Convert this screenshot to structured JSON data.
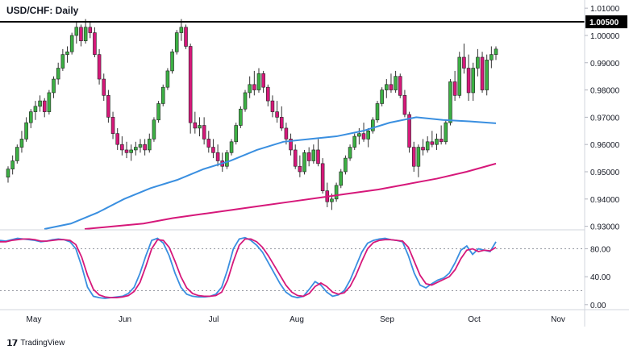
{
  "chart_data": {
    "type": "candlestick",
    "title": "USD/CHF: Daily",
    "brand": "TradingView",
    "x_labels": [
      "May",
      "Jun",
      "Jul",
      "Aug",
      "Sep",
      "Oct",
      "Nov"
    ],
    "price_axis": {
      "ylim": [
        0.929,
        1.013
      ],
      "ticks": [
        "1.01000",
        "1.00000",
        "0.99000",
        "0.98000",
        "0.97000",
        "0.96000",
        "0.95000",
        "0.94000",
        "0.93000"
      ],
      "tick_values": [
        1.01,
        1.0,
        0.99,
        0.98,
        0.97,
        0.96,
        0.95,
        0.94,
        0.93
      ]
    },
    "resistance": {
      "value": 1.005,
      "label": "1.00500",
      "color": "#000000"
    },
    "colors": {
      "up": "#3cb044",
      "down": "#d6187a",
      "sma_fast": "#3a8fe0",
      "sma_slow": "#d6187a",
      "stoch_k": "#3a8fe0",
      "stoch_d": "#d6187a"
    },
    "candles": [
      [
        0.948,
        0.952,
        0.946,
        0.951
      ],
      [
        0.951,
        0.956,
        0.949,
        0.954
      ],
      [
        0.954,
        0.96,
        0.953,
        0.959
      ],
      [
        0.959,
        0.965,
        0.957,
        0.962
      ],
      [
        0.962,
        0.97,
        0.961,
        0.968
      ],
      [
        0.968,
        0.973,
        0.966,
        0.972
      ],
      [
        0.972,
        0.976,
        0.969,
        0.974
      ],
      [
        0.974,
        0.978,
        0.972,
        0.976
      ],
      [
        0.976,
        0.977,
        0.97,
        0.972
      ],
      [
        0.972,
        0.98,
        0.971,
        0.979
      ],
      [
        0.979,
        0.985,
        0.977,
        0.984
      ],
      [
        0.984,
        0.99,
        0.982,
        0.988
      ],
      [
        0.988,
        0.995,
        0.987,
        0.993
      ],
      [
        0.993,
        0.996,
        0.99,
        0.994
      ],
      [
        0.994,
        1.001,
        0.993,
        1.0
      ],
      [
        1.0,
        1.005,
        0.997,
        1.003
      ],
      [
        1.003,
        1.004,
        0.996,
        0.998
      ],
      [
        0.998,
        1.006,
        0.997,
        1.003
      ],
      [
        1.003,
        1.005,
        0.999,
        1.001
      ],
      [
        1.001,
        1.003,
        0.992,
        0.993
      ],
      [
        0.993,
        0.995,
        0.982,
        0.984
      ],
      [
        0.984,
        0.986,
        0.976,
        0.978
      ],
      [
        0.978,
        0.98,
        0.968,
        0.97
      ],
      [
        0.97,
        0.972,
        0.962,
        0.964
      ],
      [
        0.964,
        0.966,
        0.958,
        0.96
      ],
      [
        0.96,
        0.963,
        0.956,
        0.958
      ],
      [
        0.958,
        0.961,
        0.955,
        0.957
      ],
      [
        0.957,
        0.96,
        0.954,
        0.958
      ],
      [
        0.958,
        0.961,
        0.956,
        0.959
      ],
      [
        0.959,
        0.962,
        0.957,
        0.96
      ],
      [
        0.96,
        0.962,
        0.956,
        0.958
      ],
      [
        0.958,
        0.964,
        0.957,
        0.962
      ],
      [
        0.962,
        0.97,
        0.961,
        0.969
      ],
      [
        0.969,
        0.976,
        0.968,
        0.975
      ],
      [
        0.975,
        0.982,
        0.974,
        0.981
      ],
      [
        0.981,
        0.988,
        0.98,
        0.987
      ],
      [
        0.987,
        0.995,
        0.986,
        0.994
      ],
      [
        0.994,
        1.002,
        0.993,
        1.001
      ],
      [
        1.001,
        1.006,
        0.998,
        1.003
      ],
      [
        1.003,
        1.004,
        0.995,
        0.996
      ],
      [
        0.996,
        0.997,
        0.964,
        0.968
      ],
      [
        0.968,
        0.972,
        0.964,
        0.966
      ],
      [
        0.966,
        0.97,
        0.963,
        0.967
      ],
      [
        0.967,
        0.97,
        0.96,
        0.962
      ],
      [
        0.962,
        0.965,
        0.957,
        0.959
      ],
      [
        0.959,
        0.962,
        0.955,
        0.957
      ],
      [
        0.957,
        0.96,
        0.952,
        0.954
      ],
      [
        0.954,
        0.957,
        0.95,
        0.952
      ],
      [
        0.952,
        0.958,
        0.951,
        0.957
      ],
      [
        0.957,
        0.962,
        0.956,
        0.961
      ],
      [
        0.961,
        0.968,
        0.96,
        0.967
      ],
      [
        0.967,
        0.974,
        0.966,
        0.973
      ],
      [
        0.973,
        0.98,
        0.972,
        0.979
      ],
      [
        0.979,
        0.985,
        0.977,
        0.982
      ],
      [
        0.982,
        0.987,
        0.978,
        0.98
      ],
      [
        0.98,
        0.988,
        0.979,
        0.986
      ],
      [
        0.986,
        0.987,
        0.979,
        0.981
      ],
      [
        0.981,
        0.982,
        0.974,
        0.976
      ],
      [
        0.976,
        0.978,
        0.97,
        0.972
      ],
      [
        0.972,
        0.976,
        0.968,
        0.97
      ],
      [
        0.97,
        0.974,
        0.965,
        0.966
      ],
      [
        0.966,
        0.968,
        0.96,
        0.962
      ],
      [
        0.962,
        0.964,
        0.956,
        0.958
      ],
      [
        0.958,
        0.96,
        0.951,
        0.952
      ],
      [
        0.952,
        0.956,
        0.948,
        0.95
      ],
      [
        0.95,
        0.958,
        0.949,
        0.957
      ],
      [
        0.957,
        0.959,
        0.952,
        0.954
      ],
      [
        0.954,
        0.96,
        0.953,
        0.958
      ],
      [
        0.958,
        0.962,
        0.952,
        0.953
      ],
      [
        0.953,
        0.955,
        0.942,
        0.943
      ],
      [
        0.943,
        0.946,
        0.937,
        0.939
      ],
      [
        0.939,
        0.942,
        0.936,
        0.94
      ],
      [
        0.94,
        0.946,
        0.939,
        0.945
      ],
      [
        0.945,
        0.951,
        0.944,
        0.95
      ],
      [
        0.95,
        0.956,
        0.949,
        0.955
      ],
      [
        0.955,
        0.96,
        0.954,
        0.959
      ],
      [
        0.959,
        0.964,
        0.958,
        0.963
      ],
      [
        0.963,
        0.966,
        0.96,
        0.964
      ],
      [
        0.964,
        0.968,
        0.961,
        0.962
      ],
      [
        0.962,
        0.966,
        0.959,
        0.965
      ],
      [
        0.965,
        0.97,
        0.964,
        0.969
      ],
      [
        0.969,
        0.976,
        0.968,
        0.975
      ],
      [
        0.975,
        0.981,
        0.974,
        0.98
      ],
      [
        0.98,
        0.984,
        0.977,
        0.982
      ],
      [
        0.982,
        0.986,
        0.979,
        0.98
      ],
      [
        0.98,
        0.987,
        0.979,
        0.985
      ],
      [
        0.985,
        0.986,
        0.977,
        0.978
      ],
      [
        0.978,
        0.98,
        0.97,
        0.971
      ],
      [
        0.971,
        0.972,
        0.957,
        0.959
      ],
      [
        0.959,
        0.961,
        0.95,
        0.952
      ],
      [
        0.952,
        0.96,
        0.948,
        0.959
      ],
      [
        0.959,
        0.962,
        0.956,
        0.958
      ],
      [
        0.958,
        0.963,
        0.957,
        0.961
      ],
      [
        0.961,
        0.965,
        0.959,
        0.96
      ],
      [
        0.96,
        0.964,
        0.958,
        0.962
      ],
      [
        0.962,
        0.967,
        0.96,
        0.961
      ],
      [
        0.961,
        0.969,
        0.96,
        0.968
      ],
      [
        0.968,
        0.984,
        0.967,
        0.983
      ],
      [
        0.983,
        0.987,
        0.976,
        0.978
      ],
      [
        0.978,
        0.994,
        0.977,
        0.992
      ],
      [
        0.992,
        0.997,
        0.986,
        0.988
      ],
      [
        0.988,
        0.993,
        0.976,
        0.979
      ],
      [
        0.979,
        0.99,
        0.976,
        0.988
      ],
      [
        0.988,
        0.995,
        0.985,
        0.992
      ],
      [
        0.992,
        0.994,
        0.979,
        0.98
      ],
      [
        0.98,
        0.993,
        0.978,
        0.991
      ],
      [
        0.991,
        0.996,
        0.988,
        0.993
      ],
      [
        0.993,
        0.996,
        0.991,
        0.995
      ]
    ],
    "sma_fast": {
      "start": [
        55,
        284
      ],
      "points": [
        0.929,
        0.931,
        0.935,
        0.94,
        0.944,
        0.947,
        0.951,
        0.954,
        0.958,
        0.961,
        0.962,
        0.963,
        0.965,
        0.968,
        0.97,
        0.969,
        0.9685,
        0.9678
      ]
    },
    "sma_slow": {
      "points": [
        0.929,
        0.93,
        0.931,
        0.933,
        0.9345,
        0.936,
        0.9375,
        0.939,
        0.9405,
        0.942,
        0.9435,
        0.9455,
        0.9475,
        0.95,
        0.953
      ]
    },
    "stochastic": {
      "ylim": [
        -6,
        106
      ],
      "ticks": [
        "80.00",
        "40.00",
        "0.00"
      ],
      "tick_values": [
        80,
        40,
        0
      ],
      "levels": [
        80,
        20
      ],
      "k": [
        92,
        91,
        93,
        95,
        94,
        93,
        92,
        90,
        91,
        93,
        94,
        93,
        90,
        80,
        55,
        25,
        12,
        10,
        9,
        10,
        11,
        12,
        16,
        25,
        45,
        70,
        92,
        95,
        88,
        70,
        45,
        25,
        15,
        12,
        11,
        11,
        12,
        15,
        25,
        50,
        80,
        94,
        96,
        92,
        85,
        75,
        60,
        45,
        30,
        18,
        12,
        10,
        12,
        22,
        33,
        28,
        18,
        12,
        14,
        20,
        35,
        55,
        75,
        88,
        92,
        94,
        95,
        93,
        92,
        90,
        70,
        45,
        28,
        24,
        30,
        35,
        38,
        45,
        60,
        78,
        84,
        72,
        80,
        78,
        76,
        90
      ],
      "d": [
        90,
        90,
        92,
        93,
        94,
        94,
        93,
        91,
        91,
        92,
        93,
        93,
        92,
        86,
        68,
        42,
        22,
        14,
        11,
        10,
        10,
        11,
        13,
        19,
        32,
        55,
        80,
        93,
        92,
        82,
        62,
        40,
        24,
        16,
        13,
        12,
        12,
        13,
        18,
        35,
        62,
        85,
        94,
        94,
        90,
        82,
        70,
        56,
        42,
        28,
        18,
        13,
        12,
        16,
        26,
        31,
        26,
        18,
        15,
        17,
        26,
        42,
        62,
        80,
        89,
        92,
        93,
        93,
        92,
        91,
        82,
        62,
        42,
        30,
        28,
        32,
        36,
        40,
        50,
        66,
        78,
        80,
        76,
        78,
        77,
        82
      ]
    }
  }
}
